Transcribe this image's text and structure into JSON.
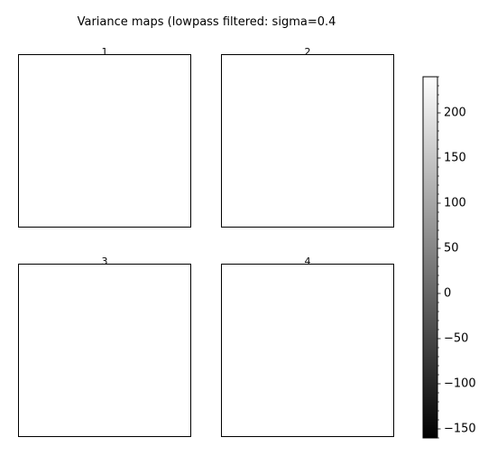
{
  "chart_data": {
    "type": "heatmap",
    "title": "Variance maps (lowpass filtered: sigma=0.4",
    "colormap": "gray",
    "panels": [
      {
        "title": "1"
      },
      {
        "title": "2"
      },
      {
        "title": "3"
      },
      {
        "title": "4"
      }
    ],
    "colorbar": {
      "range": [
        -160,
        240
      ],
      "major_ticks": [
        -150,
        -100,
        -50,
        0,
        50,
        100,
        150,
        200
      ],
      "major_tick_labels": [
        "−150",
        "−100",
        "−50",
        "0",
        "50",
        "100",
        "150",
        "200"
      ],
      "minor_tick_step": 10,
      "colors": [
        "#000000",
        "#ffffff"
      ]
    }
  }
}
